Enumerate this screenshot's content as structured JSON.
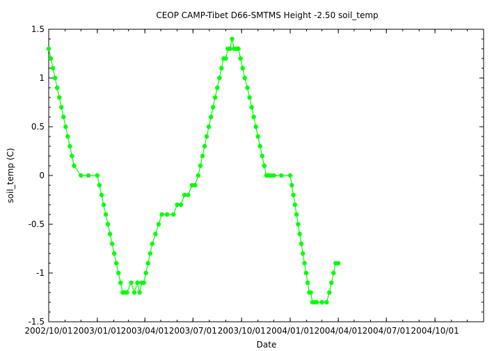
{
  "chart_data": {
    "type": "scatter",
    "title": "CEOP CAMP-Tibet D66-SMTMS Height -2.50 soil_temp",
    "xlabel": "Date",
    "ylabel": "soil_temp (C)",
    "x_is_date": true,
    "xlim": [
      "2002-10-01",
      "2005-01-01"
    ],
    "ylim": [
      -1.5,
      1.5
    ],
    "grid": false,
    "line_connected": true,
    "marker_color": "#00ff00",
    "x_tick_labels": [
      "2002/10/01",
      "2003/01/01",
      "2003/04/01",
      "2003/07/01",
      "2003/10/01",
      "2004/01/01",
      "2004/04/01",
      "2004/07/01",
      "2004/10/01"
    ],
    "y_tick_labels": [
      "1.5",
      "1",
      "0.5",
      "0",
      "-0.5",
      "-1",
      "-1.5"
    ],
    "series": [
      {
        "x": [
          "2002-10-01",
          "2002-10-05",
          "2002-10-09",
          "2002-10-13",
          "2002-10-17",
          "2002-10-21",
          "2002-10-25",
          "2002-10-29",
          "2002-11-02",
          "2002-11-06",
          "2002-11-10",
          "2002-11-14",
          "2002-11-18",
          "2002-12-01",
          "2002-12-15",
          "2003-01-01",
          "2003-01-05",
          "2003-01-09",
          "2003-01-13",
          "2003-01-17",
          "2003-01-21",
          "2003-01-25",
          "2003-01-29",
          "2003-02-02",
          "2003-02-06",
          "2003-02-10",
          "2003-02-14",
          "2003-02-18",
          "2003-02-22",
          "2003-02-26",
          "2003-03-06",
          "2003-03-12",
          "2003-03-18",
          "2003-03-22",
          "2003-03-26",
          "2003-03-30",
          "2003-04-03",
          "2003-04-07",
          "2003-04-11",
          "2003-04-15",
          "2003-04-21",
          "2003-04-27",
          "2003-05-03",
          "2003-05-13",
          "2003-05-25",
          "2003-06-01",
          "2003-06-08",
          "2003-06-15",
          "2003-06-22",
          "2003-06-29",
          "2003-07-05",
          "2003-07-11",
          "2003-07-15",
          "2003-07-19",
          "2003-07-23",
          "2003-07-27",
          "2003-07-31",
          "2003-08-04",
          "2003-08-08",
          "2003-08-12",
          "2003-08-16",
          "2003-08-20",
          "2003-08-24",
          "2003-08-28",
          "2003-09-01",
          "2003-09-05",
          "2003-09-09",
          "2003-09-13",
          "2003-09-17",
          "2003-09-21",
          "2003-09-25",
          "2003-09-29",
          "2003-10-03",
          "2003-10-07",
          "2003-10-12",
          "2003-10-16",
          "2003-10-20",
          "2003-10-24",
          "2003-10-28",
          "2003-11-01",
          "2003-11-05",
          "2003-11-09",
          "2003-11-13",
          "2003-11-17",
          "2003-11-21",
          "2003-11-25",
          "2003-12-01",
          "2003-12-15",
          "2004-01-01",
          "2004-01-04",
          "2004-01-07",
          "2004-01-10",
          "2004-01-13",
          "2004-01-16",
          "2004-01-19",
          "2004-01-22",
          "2004-01-25",
          "2004-01-28",
          "2004-01-31",
          "2004-02-03",
          "2004-02-06",
          "2004-02-09",
          "2004-02-12",
          "2004-02-15",
          "2004-02-20",
          "2004-03-01",
          "2004-03-10",
          "2004-03-15",
          "2004-03-19",
          "2004-03-23",
          "2004-03-27",
          "2004-04-01"
        ],
        "y": [
          1.3,
          1.2,
          1.1,
          1.0,
          0.9,
          0.8,
          0.7,
          0.6,
          0.5,
          0.4,
          0.3,
          0.2,
          0.1,
          0.0,
          0.0,
          0.0,
          -0.1,
          -0.2,
          -0.3,
          -0.4,
          -0.5,
          -0.6,
          -0.7,
          -0.8,
          -0.9,
          -1.0,
          -1.1,
          -1.2,
          -1.2,
          -1.2,
          -1.1,
          -1.2,
          -1.1,
          -1.2,
          -1.1,
          -1.1,
          -1.0,
          -0.9,
          -0.8,
          -0.7,
          -0.6,
          -0.5,
          -0.4,
          -0.4,
          -0.4,
          -0.3,
          -0.3,
          -0.2,
          -0.2,
          -0.1,
          -0.1,
          0.0,
          0.1,
          0.2,
          0.3,
          0.4,
          0.5,
          0.6,
          0.7,
          0.8,
          0.9,
          1.0,
          1.1,
          1.2,
          1.2,
          1.3,
          1.3,
          1.4,
          1.3,
          1.3,
          1.3,
          1.2,
          1.1,
          1.0,
          0.9,
          0.8,
          0.7,
          0.6,
          0.5,
          0.4,
          0.3,
          0.2,
          0.1,
          0.0,
          0.0,
          0.0,
          0.0,
          0.0,
          0.0,
          -0.1,
          -0.2,
          -0.3,
          -0.4,
          -0.5,
          -0.6,
          -0.7,
          -0.8,
          -0.9,
          -1.0,
          -1.1,
          -1.2,
          -1.2,
          -1.3,
          -1.3,
          -1.3,
          -1.3,
          -1.3,
          -1.2,
          -1.1,
          -1.0,
          -0.9,
          -0.9
        ]
      }
    ]
  }
}
